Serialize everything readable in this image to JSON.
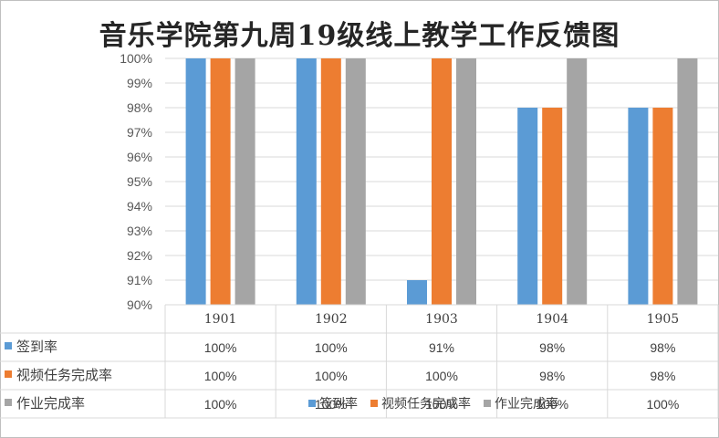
{
  "chart_data": {
    "type": "bar",
    "title": "音乐学院第九周19级线上教学工作反馈图",
    "categories": [
      "1901",
      "1902",
      "1903",
      "1904",
      "1905"
    ],
    "series": [
      {
        "name": "签到率",
        "color": "#5b9bd5",
        "values": [
          100,
          100,
          91,
          98,
          98
        ],
        "labels": [
          "100%",
          "100%",
          "91%",
          "98%",
          "98%"
        ]
      },
      {
        "name": "视频任务完成率",
        "color": "#ed7d31",
        "values": [
          100,
          100,
          100,
          98,
          98
        ],
        "labels": [
          "100%",
          "100%",
          "100%",
          "98%",
          "98%"
        ]
      },
      {
        "name": "作业完成率",
        "color": "#a5a5a5",
        "values": [
          100,
          100,
          100,
          100,
          100
        ],
        "labels": [
          "100%",
          "100%",
          "100%",
          "100%",
          "100%"
        ]
      }
    ],
    "ylim": [
      90,
      100
    ],
    "yticks": [
      "90%",
      "91%",
      "92%",
      "93%",
      "94%",
      "95%",
      "96%",
      "97%",
      "98%",
      "99%",
      "100%"
    ],
    "grid": true,
    "data_table": true,
    "legend_position": "bottom"
  }
}
